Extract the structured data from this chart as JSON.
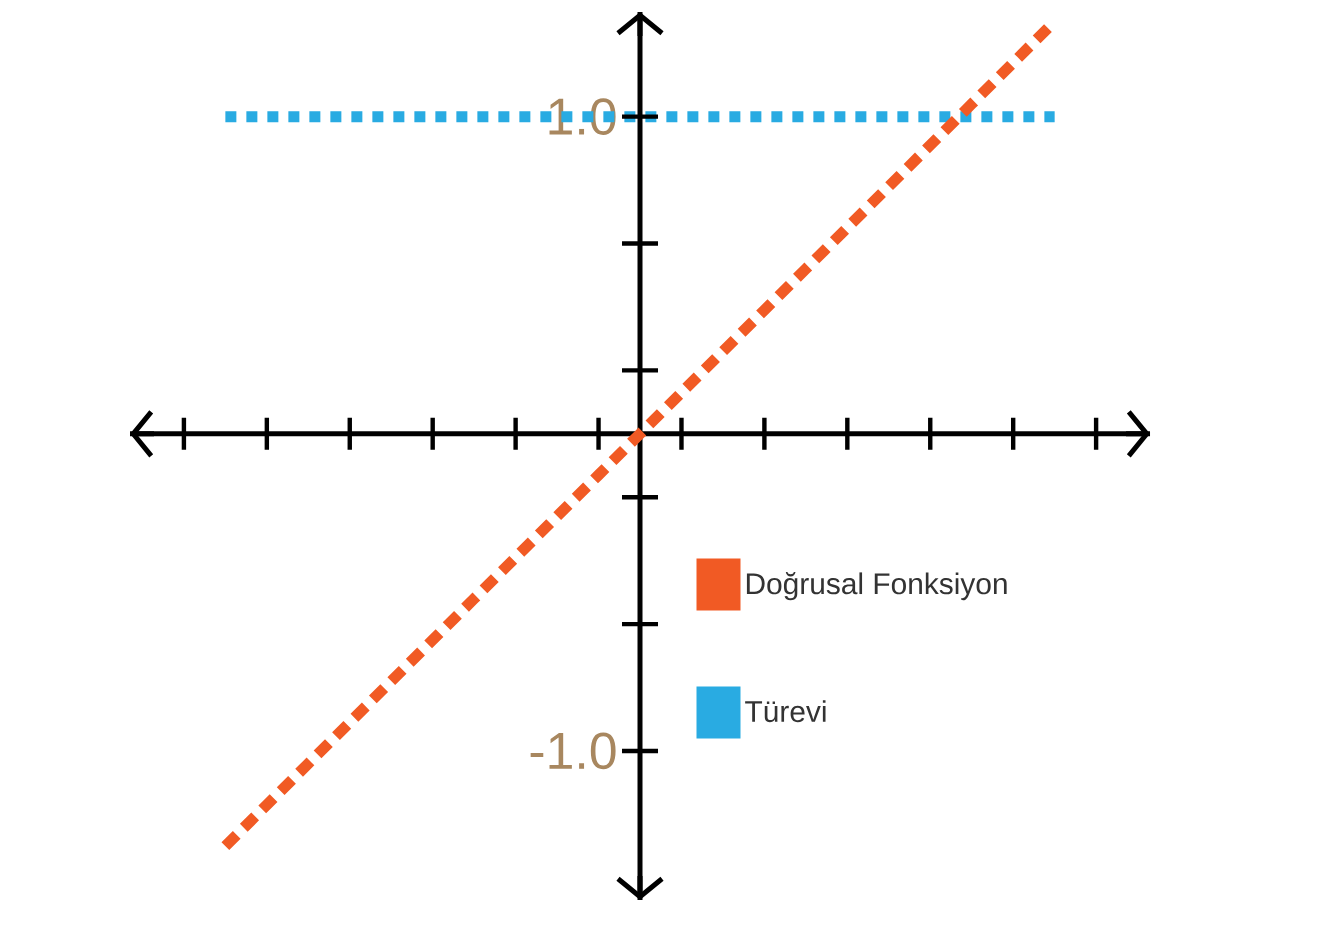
{
  "chart_data": {
    "type": "line",
    "categories": [
      null,
      null,
      null,
      null,
      null,
      null,
      null,
      null,
      null,
      null,
      null,
      null,
      null,
      null,
      null,
      null,
      null,
      null,
      null,
      null,
      null
    ],
    "series": [
      {
        "name": "Türevi",
        "color": "#29abe2",
        "line_style": "dotted",
        "values": [
          1,
          1,
          1,
          1,
          1,
          1,
          1,
          1,
          1,
          1,
          1,
          1,
          1,
          1,
          1,
          1,
          1,
          1,
          1,
          1,
          1
        ]
      },
      {
        "name": "Doğrusal Fonksiyon",
        "color": "#f15a24",
        "line_style": "dashed",
        "values": [
          -1.3,
          -1.17,
          -1.04,
          -0.91,
          -0.78,
          -0.65,
          -0.52,
          -0.39,
          -0.26,
          -0.13,
          0,
          0.13,
          0.26,
          0.39,
          0.52,
          0.65,
          0.78,
          0.91,
          1.04,
          1.17,
          1.3
        ]
      }
    ],
    "ylim": [
      -1.47,
      1.33
    ],
    "yticks": [
      {
        "value": 1,
        "label": "1.0"
      },
      {
        "value": -1,
        "label": "-1.0"
      }
    ],
    "legend": "bottom right"
  }
}
